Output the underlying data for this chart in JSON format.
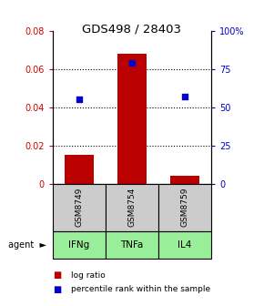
{
  "title": "GDS498 / 28403",
  "categories": [
    "IFNg",
    "TNFa",
    "IL4"
  ],
  "sample_labels": [
    "GSM8749",
    "GSM8754",
    "GSM8759"
  ],
  "log_ratios": [
    0.015,
    0.068,
    0.004
  ],
  "percentile_ranks": [
    55,
    79,
    57
  ],
  "bar_color": "#bb0000",
  "dot_color": "#0000cc",
  "ylim_left": [
    0,
    0.08
  ],
  "ylim_right": [
    0,
    100
  ],
  "yticks_left": [
    0,
    0.02,
    0.04,
    0.06,
    0.08
  ],
  "yticks_right": [
    0,
    25,
    50,
    75,
    100
  ],
  "ytick_labels_left": [
    "0",
    "0.02",
    "0.04",
    "0.06",
    "0.08"
  ],
  "ytick_labels_right": [
    "0",
    "25",
    "50",
    "75",
    "100%"
  ],
  "grid_values": [
    0.02,
    0.04,
    0.06
  ],
  "sample_box_color": "#cccccc",
  "agent_box_color": "#99ee99",
  "legend_bar_label": "log ratio",
  "legend_dot_label": "percentile rank within the sample",
  "bar_width": 0.55
}
